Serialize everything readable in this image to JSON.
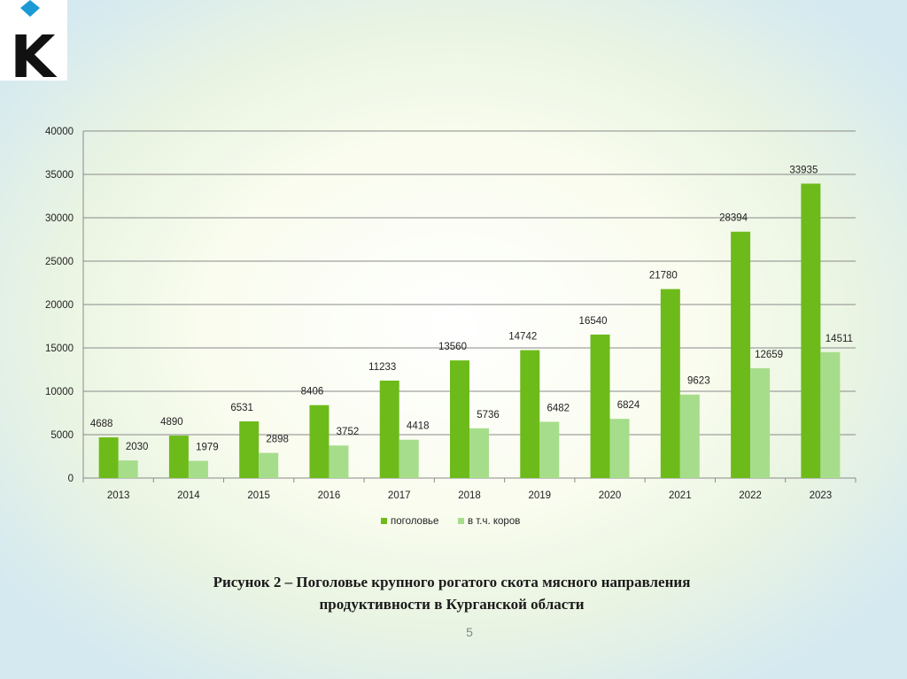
{
  "logo": {
    "letter": "K",
    "diamond_color": "#1b9ad6",
    "letter_color": "#111111"
  },
  "colors": {
    "series1": "#6dbb1a",
    "series2": "#a6dd8a",
    "grid": "#8a8a8a"
  },
  "chart_data": {
    "type": "bar",
    "categories": [
      "2013",
      "2014",
      "2015",
      "2016",
      "2017",
      "2018",
      "2019",
      "2020",
      "2021",
      "2022",
      "2023"
    ],
    "series": [
      {
        "name": "поголовье",
        "values": [
          4688,
          4890,
          6531,
          8406,
          11233,
          13560,
          14742,
          16540,
          21780,
          28394,
          33935
        ]
      },
      {
        "name": "в т.ч. коров",
        "values": [
          2030,
          1979,
          2898,
          3752,
          4418,
          5736,
          6482,
          6824,
          9623,
          12659,
          14511
        ]
      }
    ],
    "ylim": [
      0,
      40000
    ],
    "yticks": [
      0,
      5000,
      10000,
      15000,
      20000,
      25000,
      30000,
      35000,
      40000
    ],
    "grid": true,
    "legend_position": "bottom",
    "data_labels": true
  },
  "caption": {
    "line1": "Рисунок 2 – Поголовье крупного рогатого скота мясного направления",
    "line2": "продуктивности в Курганской области"
  },
  "page_number": "5"
}
